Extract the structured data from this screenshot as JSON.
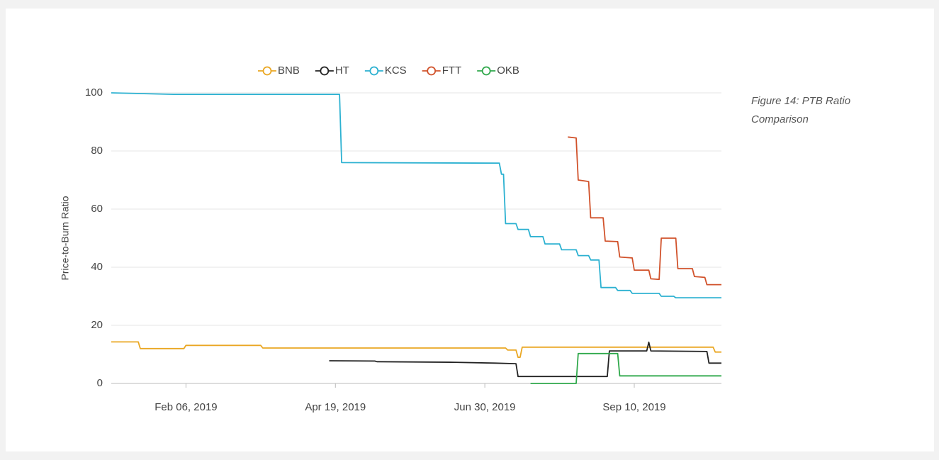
{
  "chart_data": {
    "type": "line",
    "y_label": "Price-to-Burn Ratio",
    "annotation": "Figure 14: PTB Ratio Comparison",
    "xlim": [
      "2019-01-01",
      "2019-10-22"
    ],
    "xticks": [
      {
        "value": "2019-02-06",
        "label": "Feb 06, 2019"
      },
      {
        "value": "2019-04-19",
        "label": "Apr 19, 2019"
      },
      {
        "value": "2019-06-30",
        "label": "Jun 30, 2019"
      },
      {
        "value": "2019-09-10",
        "label": "Sep 10, 2019"
      }
    ],
    "ylim": [
      0,
      100
    ],
    "yticks": [
      0,
      20,
      40,
      60,
      80,
      100
    ],
    "grid": true,
    "legend": "top",
    "series": [
      {
        "name": "BNB",
        "color": "#eaa723",
        "x": [
          "2019-01-01",
          "2019-01-14",
          "2019-01-15",
          "2019-02-05",
          "2019-02-06",
          "2019-03-14",
          "2019-03-15",
          "2019-07-10",
          "2019-07-11",
          "2019-07-15",
          "2019-07-16",
          "2019-07-17",
          "2019-07-18",
          "2019-10-18",
          "2019-10-19",
          "2019-10-22"
        ],
        "values": [
          14.3,
          14.3,
          12,
          12,
          13.1,
          13.1,
          12.2,
          12.2,
          11.5,
          11.5,
          9,
          9,
          12.5,
          12.5,
          10.8,
          10.8
        ]
      },
      {
        "name": "HT",
        "color": "#222222",
        "x": [
          "2019-04-16",
          "2019-05-08",
          "2019-05-09",
          "2019-06-15",
          "2019-07-05",
          "2019-07-15",
          "2019-07-16",
          "2019-08-28",
          "2019-08-29",
          "2019-09-16",
          "2019-09-17",
          "2019-09-18",
          "2019-10-15",
          "2019-10-16",
          "2019-10-22"
        ],
        "values": [
          7.8,
          7.7,
          7.5,
          7.3,
          7,
          6.8,
          2.4,
          2.4,
          11.2,
          11.2,
          14.2,
          11.2,
          11,
          7,
          7
        ]
      },
      {
        "name": "KCS",
        "color": "#2cb1d1",
        "x": [
          "2019-01-01",
          "2019-01-31",
          "2019-04-21",
          "2019-04-22",
          "2019-07-07",
          "2019-07-08",
          "2019-07-09",
          "2019-07-10",
          "2019-07-15",
          "2019-07-16",
          "2019-07-21",
          "2019-07-22",
          "2019-07-28",
          "2019-07-29",
          "2019-08-05",
          "2019-08-06",
          "2019-08-13",
          "2019-08-14",
          "2019-08-19",
          "2019-08-20",
          "2019-08-24",
          "2019-08-25",
          "2019-09-01",
          "2019-09-02",
          "2019-09-08",
          "2019-09-09",
          "2019-09-22",
          "2019-09-23",
          "2019-09-29",
          "2019-09-30",
          "2019-10-22"
        ],
        "values": [
          100,
          99.5,
          99.5,
          76,
          75.8,
          72,
          72,
          55,
          55,
          53,
          53,
          50.5,
          50.5,
          48,
          48,
          46,
          46,
          44,
          44,
          42.5,
          42.5,
          33,
          33,
          32,
          32,
          31,
          31,
          30,
          30,
          29.5,
          29.5
        ]
      },
      {
        "name": "FTT",
        "color": "#d1522b",
        "x": [
          "2019-08-09",
          "2019-08-13",
          "2019-08-14",
          "2019-08-19",
          "2019-08-20",
          "2019-08-26",
          "2019-08-27",
          "2019-09-02",
          "2019-09-03",
          "2019-09-09",
          "2019-09-10",
          "2019-09-17",
          "2019-09-18",
          "2019-09-22",
          "2019-09-23",
          "2019-09-30",
          "2019-10-01",
          "2019-10-08",
          "2019-10-09",
          "2019-10-14",
          "2019-10-15",
          "2019-10-22"
        ],
        "values": [
          84.8,
          84.5,
          70,
          69.5,
          57,
          57,
          49,
          48.8,
          43.5,
          43.2,
          39,
          39,
          36,
          35.8,
          50,
          50,
          39.5,
          39.5,
          36.8,
          36.5,
          34,
          34
        ]
      },
      {
        "name": "OKB",
        "color": "#2fa84b",
        "x": [
          "2019-07-22",
          "2019-08-13",
          "2019-08-14",
          "2019-09-02",
          "2019-09-03",
          "2019-10-22"
        ],
        "values": [
          0,
          0,
          10.3,
          10.3,
          2.6,
          2.6
        ]
      }
    ]
  }
}
